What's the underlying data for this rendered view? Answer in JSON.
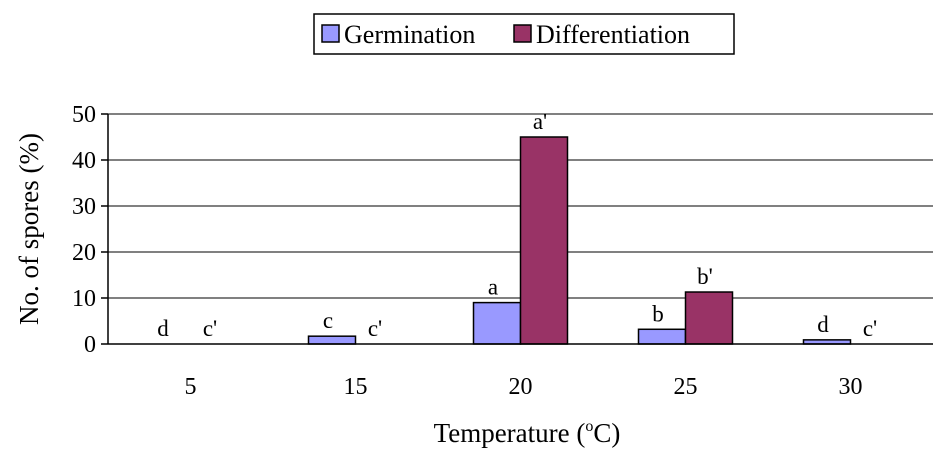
{
  "chart_data": {
    "type": "bar",
    "categories": [
      "5",
      "15",
      "20",
      "25",
      "30"
    ],
    "series": [
      {
        "name": "Germination",
        "color": "#9999ff",
        "values": [
          0,
          1.7,
          9,
          3.2,
          0.9
        ],
        "labels": [
          "d",
          "c",
          "a",
          "b",
          "d"
        ]
      },
      {
        "name": "Differentiation",
        "color": "#993366",
        "values": [
          0,
          0,
          45,
          11.3,
          0
        ],
        "labels": [
          "c'",
          "c'",
          "a'",
          "b'",
          "c'"
        ]
      }
    ],
    "xlabel_main": "Temperature (",
    "xlabel_sup": "o",
    "xlabel_end": "C)",
    "ylabel": "No. of spores (%)",
    "ylim": [
      0,
      50
    ],
    "yticks": [
      0,
      10,
      20,
      30,
      40,
      50
    ],
    "grid": true,
    "legend_position": "top-center"
  }
}
